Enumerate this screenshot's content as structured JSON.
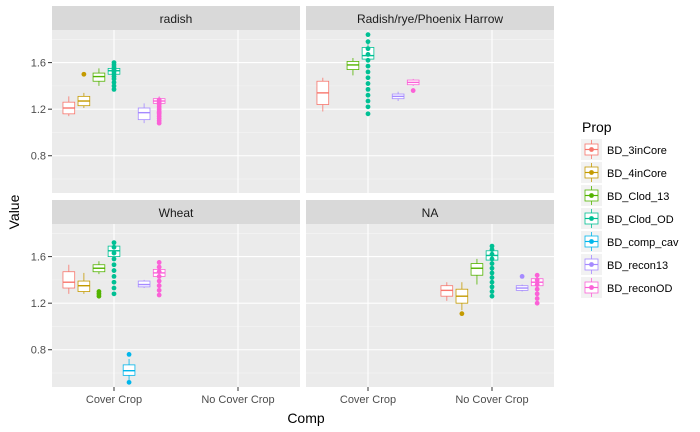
{
  "chart_data": {
    "type": "boxplot",
    "facet_layout": "2x2",
    "xlabel": "Comp",
    "ylabel": "Value",
    "x_categories": [
      "Cover Crop",
      "No Cover Crop"
    ],
    "y_ticks": [
      0.8,
      1.2,
      1.6
    ],
    "ylim": [
      0.48,
      1.88
    ],
    "legend": {
      "title": "Prop",
      "placement": "right",
      "entries": [
        {
          "name": "BD_3inCore",
          "color": "#F8766D"
        },
        {
          "name": "BD_4inCore",
          "color": "#C49A00"
        },
        {
          "name": "BD_Clod_13",
          "color": "#53B400"
        },
        {
          "name": "BD_Clod_OD",
          "color": "#00C094"
        },
        {
          "name": "BD_comp_cav",
          "color": "#00B6EB"
        },
        {
          "name": "BD_recon13",
          "color": "#A58AFF"
        },
        {
          "name": "BD_reconOD",
          "color": "#FB61D7"
        }
      ]
    },
    "n_series": 7,
    "facets": [
      {
        "title": "radish",
        "groups": [
          {
            "x": "Cover Crop",
            "boxes": [
              {
                "series": 0,
                "min": 1.14,
                "q1": 1.16,
                "median": 1.21,
                "q3": 1.26,
                "max": 1.31,
                "outliers": []
              },
              {
                "series": 1,
                "min": 1.21,
                "q1": 1.23,
                "median": 1.27,
                "q3": 1.31,
                "max": 1.34,
                "outliers": [
                  1.5
                ]
              },
              {
                "series": 2,
                "min": 1.4,
                "q1": 1.44,
                "median": 1.48,
                "q3": 1.51,
                "max": 1.55,
                "outliers": []
              },
              {
                "series": 3,
                "min": 1.43,
                "q1": 1.5,
                "median": 1.53,
                "q3": 1.55,
                "max": 1.57,
                "outliers": [
                  1.37,
                  1.4,
                  1.43,
                  1.46,
                  1.48,
                  1.5,
                  1.52,
                  1.54,
                  1.56,
                  1.58,
                  1.6
                ]
              },
              {
                "series": 4,
                "outliers": []
              },
              {
                "series": 5,
                "min": 1.08,
                "q1": 1.11,
                "median": 1.17,
                "q3": 1.21,
                "max": 1.25,
                "outliers": []
              },
              {
                "series": 6,
                "min": 1.24,
                "q1": 1.25,
                "median": 1.27,
                "q3": 1.29,
                "max": 1.31,
                "outliers": [
                  1.08,
                  1.1,
                  1.12,
                  1.14,
                  1.16,
                  1.18,
                  1.2,
                  1.22,
                  1.24,
                  1.26,
                  1.28,
                  1.17
                ]
              }
            ]
          }
        ]
      },
      {
        "title": "Radish/rye/Phoenix Harrow",
        "groups": [
          {
            "x": "Cover Crop",
            "boxes": [
              {
                "series": 0,
                "min": 1.18,
                "q1": 1.24,
                "median": 1.34,
                "q3": 1.44,
                "max": 1.47,
                "outliers": []
              },
              {
                "series": 1,
                "outliers": []
              },
              {
                "series": 2,
                "min": 1.49,
                "q1": 1.54,
                "median": 1.58,
                "q3": 1.61,
                "max": 1.64,
                "outliers": []
              },
              {
                "series": 3,
                "min": 1.6,
                "q1": 1.63,
                "median": 1.66,
                "q3": 1.73,
                "max": 1.77,
                "outliers": [
                  1.16,
                  1.22,
                  1.27,
                  1.32,
                  1.37,
                  1.42,
                  1.47,
                  1.52,
                  1.57,
                  1.62,
                  1.67,
                  1.72,
                  1.78,
                  1.84
                ]
              },
              {
                "series": 4,
                "outliers": []
              },
              {
                "series": 5,
                "min": 1.27,
                "q1": 1.29,
                "median": 1.31,
                "q3": 1.33,
                "max": 1.35,
                "outliers": []
              },
              {
                "series": 6,
                "min": 1.4,
                "q1": 1.41,
                "median": 1.43,
                "q3": 1.45,
                "max": 1.46,
                "outliers": [
                  1.36
                ]
              }
            ]
          }
        ]
      },
      {
        "title": "Wheat",
        "groups": [
          {
            "x": "Cover Crop",
            "boxes": [
              {
                "series": 0,
                "min": 1.28,
                "q1": 1.33,
                "median": 1.38,
                "q3": 1.47,
                "max": 1.53,
                "outliers": []
              },
              {
                "series": 1,
                "min": 1.28,
                "q1": 1.3,
                "median": 1.35,
                "q3": 1.39,
                "max": 1.46,
                "outliers": []
              },
              {
                "series": 2,
                "min": 1.45,
                "q1": 1.47,
                "median": 1.5,
                "q3": 1.53,
                "max": 1.56,
                "outliers": [
                  1.26,
                  1.28,
                  1.3
                ]
              },
              {
                "series": 3,
                "min": 1.56,
                "q1": 1.6,
                "median": 1.65,
                "q3": 1.69,
                "max": 1.71,
                "outliers": [
                  1.28,
                  1.33,
                  1.38,
                  1.43,
                  1.48,
                  1.53,
                  1.58,
                  1.63,
                  1.68,
                  1.72
                ]
              },
              {
                "series": 4,
                "min": 0.54,
                "q1": 0.58,
                "median": 0.62,
                "q3": 0.67,
                "max": 0.72,
                "outliers": [
                  0.52,
                  0.76
                ]
              },
              {
                "series": 5,
                "min": 1.33,
                "q1": 1.34,
                "median": 1.36,
                "q3": 1.39,
                "max": 1.4,
                "outliers": []
              },
              {
                "series": 6,
                "min": 1.42,
                "q1": 1.43,
                "median": 1.46,
                "q3": 1.49,
                "max": 1.52,
                "outliers": [
                  1.27,
                  1.31,
                  1.35,
                  1.39,
                  1.43,
                  1.47,
                  1.51,
                  1.55
                ]
              }
            ]
          }
        ]
      },
      {
        "title": "NA",
        "groups": [
          {
            "x": "Cover Crop",
            "boxes": []
          },
          {
            "x": "No Cover Crop",
            "boxes": [
              {
                "series": 0,
                "min": 1.22,
                "q1": 1.26,
                "median": 1.31,
                "q3": 1.35,
                "max": 1.38,
                "outliers": []
              },
              {
                "series": 1,
                "min": 1.14,
                "q1": 1.2,
                "median": 1.26,
                "q3": 1.32,
                "max": 1.38,
                "outliers": [
                  1.11
                ]
              },
              {
                "series": 2,
                "min": 1.36,
                "q1": 1.44,
                "median": 1.5,
                "q3": 1.54,
                "max": 1.58,
                "outliers": []
              },
              {
                "series": 3,
                "min": 1.52,
                "q1": 1.57,
                "median": 1.61,
                "q3": 1.65,
                "max": 1.68,
                "outliers": [
                  1.26,
                  1.3,
                  1.34,
                  1.38,
                  1.42,
                  1.46,
                  1.5,
                  1.54,
                  1.58,
                  1.62,
                  1.66,
                  1.69
                ]
              },
              {
                "series": 4,
                "outliers": []
              },
              {
                "series": 5,
                "min": 1.3,
                "q1": 1.31,
                "median": 1.33,
                "q3": 1.35,
                "max": 1.36,
                "outliers": [
                  1.43
                ]
              },
              {
                "series": 6,
                "min": 1.33,
                "q1": 1.35,
                "median": 1.38,
                "q3": 1.41,
                "max": 1.46,
                "outliers": [
                  1.2,
                  1.24,
                  1.28,
                  1.32,
                  1.36,
                  1.4,
                  1.44
                ]
              }
            ]
          }
        ]
      }
    ]
  }
}
